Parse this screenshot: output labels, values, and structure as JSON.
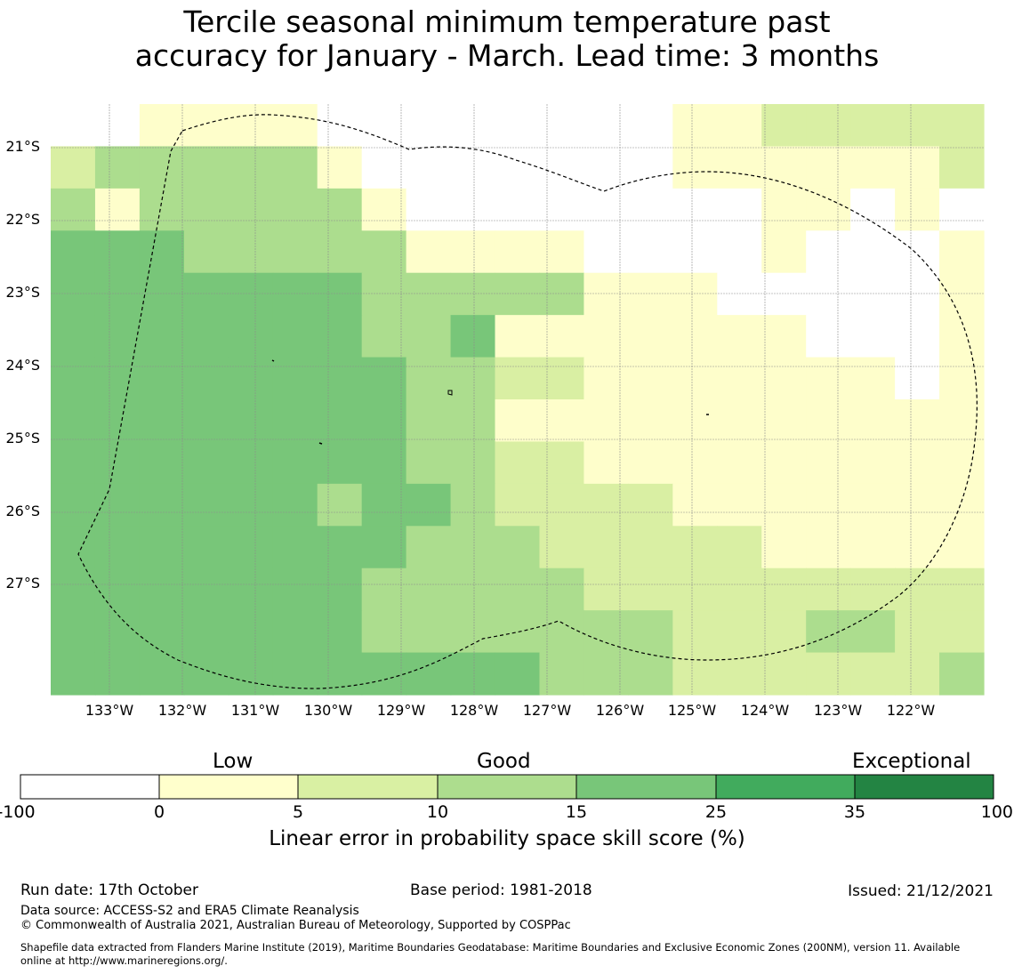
{
  "title_line1": "Tercile seasonal minimum temperature past",
  "title_line2": "accuracy for January - March. Lead time: 3 months",
  "map": {
    "lat_labels": [
      "21°S",
      "22°S",
      "23°S",
      "24°S",
      "25°S",
      "26°S",
      "27°S"
    ],
    "lon_labels": [
      "133°W",
      "132°W",
      "131°W",
      "130°W",
      "129°W",
      "128°W",
      "127°W",
      "126°W",
      "125°W",
      "124°W",
      "123°W",
      "122°W"
    ],
    "cell_size_deg": 0.5585,
    "grid_rows": [
      "001111000000001122222",
      "233333100000001111112",
      "313333310000000011010",
      "444333331111000010001",
      "444444433333111000001",
      "555554433411111110001",
      "555555443322111111101",
      "555555443311111111111",
      "555555543322111111111",
      "555554354322221111111",
      "545555543332222211111",
      "555555433333222222222",
      "555555533333332223322",
      "554444445443332222223"
    ],
    "class_colors": [
      "#ffffff",
      "#fefecb",
      "#d9efa3",
      "#acdd8e",
      "#78c679",
      "#78c679"
    ],
    "grid_line_color": "#8c8c8c",
    "boundary_color": "#000000"
  },
  "colorbar": {
    "category_labels": [
      "Low",
      "Good",
      "Exceptional"
    ],
    "ticks": [
      "-100",
      "0",
      "5",
      "10",
      "15",
      "25",
      "35",
      "100"
    ],
    "colors": [
      "#ffffff",
      "#ffffcc",
      "#d9f0a3",
      "#addd8e",
      "#78c679",
      "#41ab5d",
      "#238443"
    ],
    "label": "Linear error in probability space skill score (%)"
  },
  "footer": {
    "run_date": "Run date: 17th October",
    "base_period": "Base period: 1981-2018",
    "issued": "Issued: 21/12/2021",
    "data_source": "Data source: ACCESS-S2 and ERA5 Climate Reanalysis",
    "copyright": "© Commonwealth of Australia 2021, Australian Bureau of Meteorology, Supported by COSPPac",
    "shapefile_line1": "Shapefile data extracted from Flanders Marine Institute (2019), Maritime Boundaries Geodatabase: Maritime Boundaries and Exclusive Economic Zones (200NM), version 11. Available",
    "shapefile_line2": "online at http://www.marineregions.org/."
  }
}
